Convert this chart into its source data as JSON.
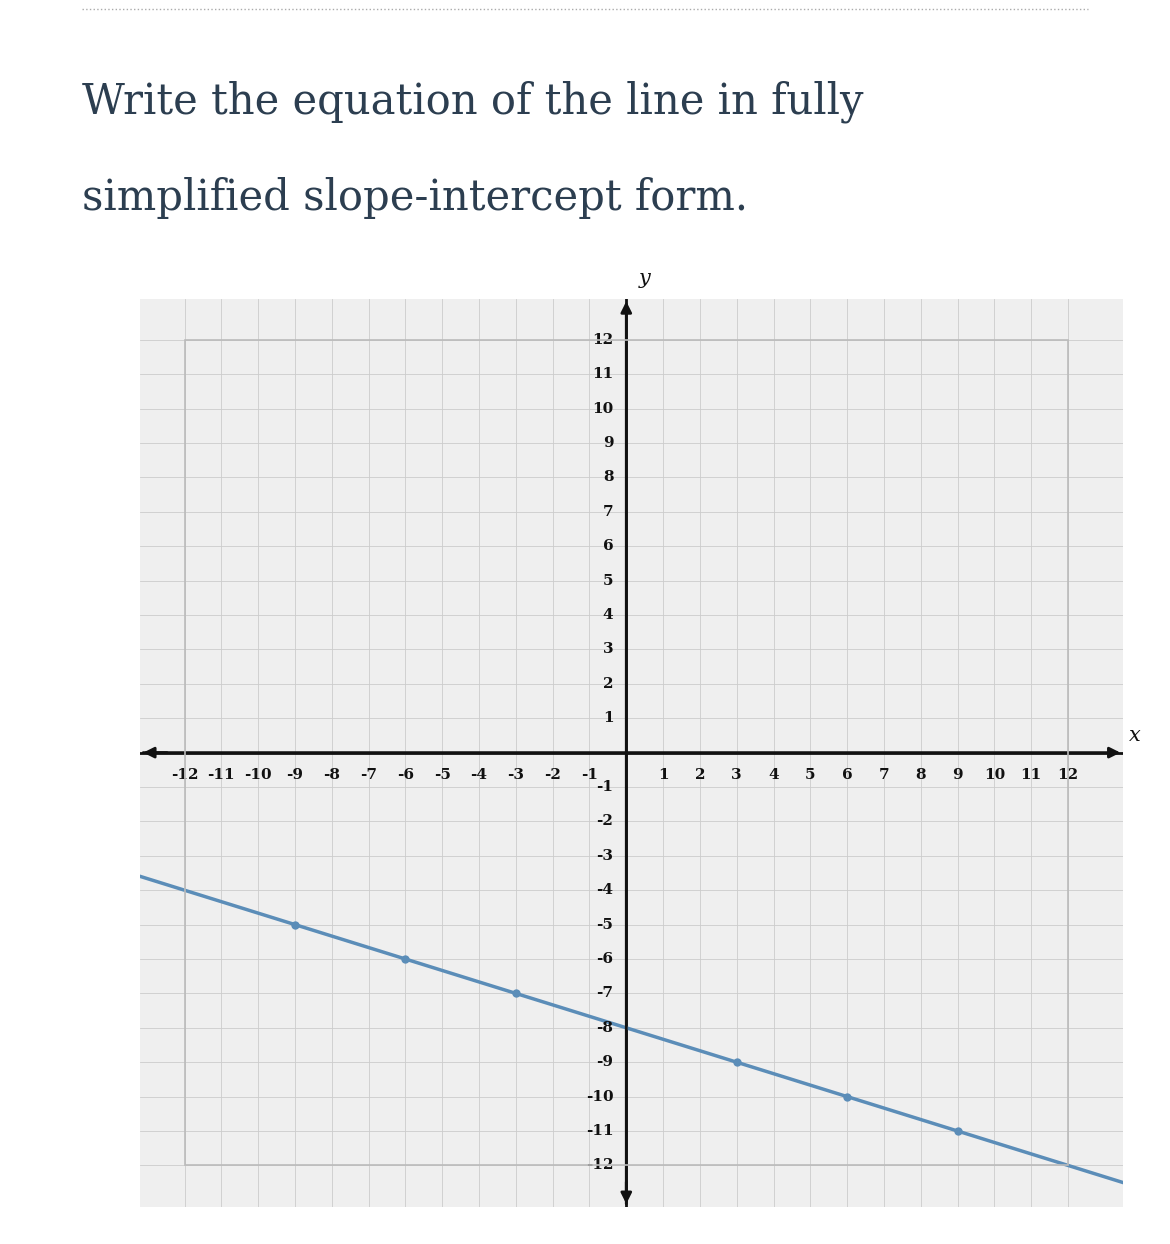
{
  "title_line1": "Write the equation of the line in fully",
  "title_line2": "simplified slope-intercept form.",
  "title_color": "#2c3e50",
  "title_fontsize": 30,
  "background_color": "#ffffff",
  "panel_background": "#efefef",
  "grid_color": "#cccccc",
  "grid_color_major": "#bbbbbb",
  "axis_color": "#111111",
  "line_color": "#5b8db8",
  "line_width": 2.5,
  "slope": -0.3333333333333333,
  "y_intercept": -8,
  "x_line_start": -13.5,
  "x_line_end": 13.8,
  "xlim": [
    -13.2,
    13.5
  ],
  "ylim": [
    -13.2,
    13.2
  ],
  "xticks": [
    -12,
    -11,
    -10,
    -9,
    -8,
    -7,
    -6,
    -5,
    -4,
    -3,
    -2,
    -1,
    1,
    2,
    3,
    4,
    5,
    6,
    7,
    8,
    9,
    10,
    11,
    12
  ],
  "yticks": [
    -12,
    -11,
    -10,
    -9,
    -8,
    -7,
    -6,
    -5,
    -4,
    -3,
    -2,
    -1,
    1,
    2,
    3,
    4,
    5,
    6,
    7,
    8,
    9,
    10,
    11,
    12
  ],
  "tick_fontsize": 11,
  "axis_label_fontsize": 15,
  "dot_points": [
    [
      -9,
      -5
    ],
    [
      -6,
      -6
    ],
    [
      -3,
      -7
    ],
    [
      3,
      -9
    ],
    [
      6,
      -10
    ],
    [
      9,
      -11
    ]
  ],
  "dot_color": "#5b8db8",
  "dot_size": 6,
  "separator_color": "#aaaaaa",
  "border_color": "#bbbbbb"
}
